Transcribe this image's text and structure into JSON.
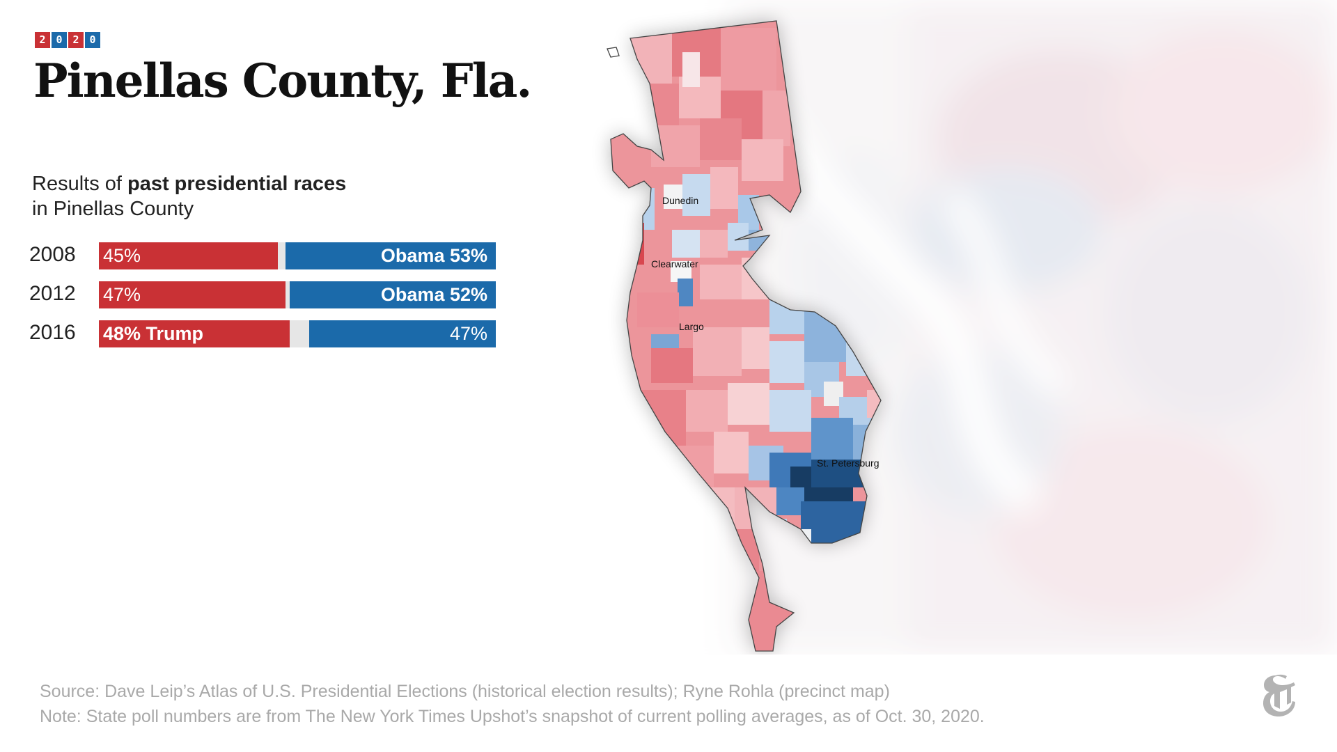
{
  "badge": {
    "digits": [
      "2",
      "0",
      "2",
      "0"
    ]
  },
  "title": "Pinellas County, Fla.",
  "subtitle": {
    "prefix": "Results of ",
    "bold": "past presidential races",
    "line2": "in Pinellas County"
  },
  "results": [
    {
      "year": "2008",
      "rep_label": "45%",
      "dem_label": "Obama 53%",
      "rep_pct": 45,
      "dem_pct": 53,
      "winner": "dem"
    },
    {
      "year": "2012",
      "rep_label": "47%",
      "dem_label": "Obama 52%",
      "rep_pct": 47,
      "dem_pct": 52,
      "winner": "dem"
    },
    {
      "year": "2016",
      "rep_label": "48% Trump",
      "dem_label": "47%",
      "rep_pct": 48,
      "dem_pct": 47,
      "winner": "rep"
    }
  ],
  "map": {
    "cities": [
      "Dunedin",
      "Clearwater",
      "Largo",
      "St. Petersburg"
    ]
  },
  "footer": {
    "source": "Source: Dave Leip’s Atlas of U.S. Presidential Elections (historical election results); Ryne Rohla (precinct map)",
    "note": "Note: State poll numbers are from The New York Times Upshot’s snapshot of current polling averages, as of Oct. 30, 2020."
  },
  "colors": {
    "rep": "#c93135",
    "dem": "#1b6aaa",
    "other": "#e6e6e6"
  }
}
